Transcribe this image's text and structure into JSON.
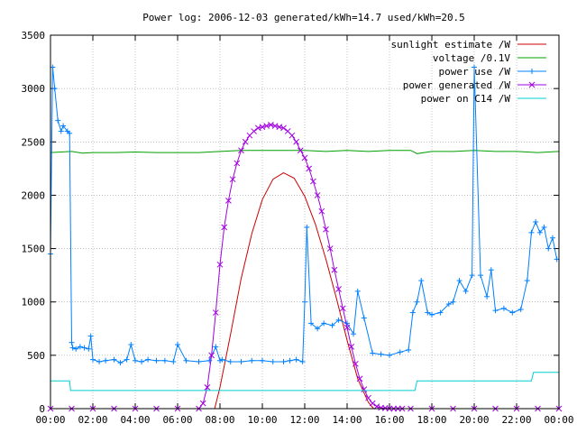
{
  "chart_data": {
    "type": "line",
    "title": "Power log: 2006-12-03 generated/kWh=14.7 used/kWh=20.5",
    "xlabel": "",
    "ylabel": "",
    "xlim": [
      0,
      24
    ],
    "ylim": [
      0,
      3500
    ],
    "x_ticks": [
      "00:00",
      "02:00",
      "04:00",
      "06:00",
      "08:00",
      "10:00",
      "12:00",
      "14:00",
      "16:00",
      "18:00",
      "20:00",
      "22:00",
      "00:00"
    ],
    "y_ticks": [
      0,
      500,
      1000,
      1500,
      2000,
      2500,
      3000,
      3500
    ],
    "grid": true,
    "legend_position": "top-right",
    "series": [
      {
        "name": "sunlight estimate /W",
        "color": "#cc0000",
        "marker": "none",
        "x": [
          7.75,
          8.0,
          8.5,
          9.0,
          9.5,
          10.0,
          10.5,
          11.0,
          11.5,
          12.0,
          12.5,
          13.0,
          13.5,
          14.0,
          14.5,
          15.0,
          15.25
        ],
        "y": [
          0,
          200,
          700,
          1220,
          1640,
          1960,
          2150,
          2210,
          2160,
          1990,
          1730,
          1400,
          1030,
          640,
          280,
          60,
          0
        ]
      },
      {
        "name": "voltage /0.1V",
        "color": "#00a000",
        "marker": "none",
        "x": [
          0,
          1,
          1.5,
          2,
          3,
          4,
          5,
          6,
          7,
          8,
          9,
          10,
          11,
          12,
          13,
          14,
          15,
          16,
          17,
          17.3,
          18,
          19,
          20,
          21,
          22,
          23,
          24
        ],
        "y": [
          2400,
          2410,
          2395,
          2400,
          2400,
          2405,
          2400,
          2400,
          2400,
          2410,
          2420,
          2420,
          2420,
          2420,
          2410,
          2420,
          2410,
          2420,
          2420,
          2390,
          2410,
          2410,
          2420,
          2410,
          2410,
          2400,
          2410
        ]
      },
      {
        "name": "power use /W",
        "color": "#0080ff",
        "marker": "plus",
        "x": [
          0.0,
          0.1,
          0.2,
          0.35,
          0.5,
          0.6,
          0.8,
          0.9,
          1.0,
          1.05,
          1.2,
          1.4,
          1.6,
          1.8,
          1.9,
          2.0,
          2.3,
          2.6,
          3.0,
          3.3,
          3.6,
          3.8,
          4.0,
          4.3,
          4.6,
          5.0,
          5.4,
          5.8,
          6.0,
          6.4,
          7.0,
          7.5,
          7.8,
          8.0,
          8.1,
          8.5,
          9.0,
          9.5,
          10.0,
          10.5,
          11.0,
          11.3,
          11.6,
          11.9,
          12.0,
          12.1,
          12.3,
          12.6,
          12.9,
          13.3,
          13.6,
          14.0,
          14.3,
          14.5,
          14.8,
          15.2,
          15.6,
          16.0,
          16.5,
          16.9,
          17.1,
          17.3,
          17.5,
          17.8,
          18.0,
          18.4,
          18.8,
          19.0,
          19.3,
          19.6,
          19.9,
          20.0,
          20.3,
          20.6,
          20.8,
          21.0,
          21.4,
          21.8,
          22.2,
          22.5,
          22.7,
          22.9,
          23.1,
          23.3,
          23.5,
          23.7,
          23.9
        ],
        "y": [
          1450,
          3200,
          3000,
          2700,
          2600,
          2650,
          2600,
          2580,
          620,
          570,
          560,
          580,
          570,
          560,
          680,
          460,
          440,
          450,
          460,
          430,
          460,
          600,
          450,
          440,
          460,
          450,
          450,
          440,
          600,
          450,
          440,
          450,
          580,
          450,
          460,
          440,
          440,
          450,
          450,
          440,
          440,
          450,
          460,
          440,
          1000,
          1700,
          800,
          750,
          800,
          780,
          830,
          800,
          700,
          1100,
          850,
          520,
          510,
          500,
          530,
          550,
          900,
          1000,
          1200,
          900,
          880,
          900,
          980,
          1000,
          1200,
          1100,
          1250,
          3200,
          1250,
          1050,
          1300,
          920,
          940,
          900,
          930,
          1200,
          1650,
          1750,
          1650,
          1700,
          1500,
          1600,
          1400
        ]
      },
      {
        "name": "power generated /W",
        "color": "#a000e0",
        "marker": "cross",
        "x": [
          0,
          1,
          2,
          3,
          4,
          5,
          6,
          7,
          7.2,
          7.4,
          7.6,
          7.8,
          8.0,
          8.2,
          8.4,
          8.6,
          8.8,
          9.0,
          9.2,
          9.4,
          9.6,
          9.8,
          10.0,
          10.2,
          10.4,
          10.6,
          10.8,
          11.0,
          11.2,
          11.4,
          11.6,
          11.8,
          12.0,
          12.2,
          12.4,
          12.6,
          12.8,
          13.0,
          13.2,
          13.4,
          13.6,
          13.8,
          14.0,
          14.2,
          14.4,
          14.6,
          14.8,
          15.0,
          15.2,
          15.4,
          15.6,
          15.8,
          16.0,
          16.2,
          16.4,
          16.6,
          17,
          18,
          19,
          20,
          21,
          22,
          23,
          24
        ],
        "y": [
          0,
          0,
          0,
          0,
          0,
          0,
          0,
          0,
          50,
          200,
          500,
          900,
          1350,
          1700,
          1950,
          2150,
          2300,
          2420,
          2500,
          2560,
          2600,
          2630,
          2640,
          2650,
          2660,
          2650,
          2640,
          2630,
          2600,
          2560,
          2500,
          2420,
          2350,
          2250,
          2130,
          2000,
          1850,
          1680,
          1500,
          1300,
          1120,
          940,
          760,
          580,
          420,
          280,
          180,
          100,
          50,
          20,
          8,
          5,
          0,
          0,
          0,
          0,
          0,
          0,
          0,
          0,
          0,
          0,
          0,
          0
        ]
      },
      {
        "name": "power on C14 /W",
        "color": "#00d0d0",
        "marker": "none",
        "x": [
          0,
          0.9,
          0.95,
          16.2,
          17.2,
          17.3,
          19.5,
          20.0,
          22.7,
          22.8,
          24
        ],
        "y": [
          260,
          260,
          170,
          170,
          170,
          260,
          260,
          260,
          260,
          340,
          340
        ]
      }
    ]
  }
}
